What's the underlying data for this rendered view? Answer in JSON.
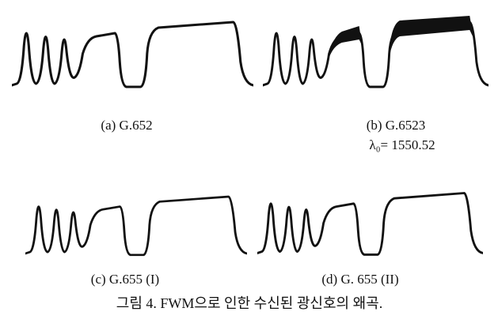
{
  "panels": [
    {
      "label": "(a) G.652"
    },
    {
      "label": "(b) G.6523",
      "note": "λ₀= 1550.52"
    },
    {
      "label": "(c) G.655 (I)"
    },
    {
      "label": "(d) G. 655 (II)"
    }
  ],
  "caption": "그림 4. FWM으로 인한 수신된 광신호의 왜곡."
}
